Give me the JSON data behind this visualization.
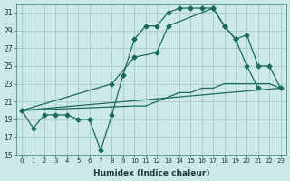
{
  "xlabel": "Humidex (Indice chaleur)",
  "bg_color": "#cce8e8",
  "grid_color": "#aacfcf",
  "line_color": "#1a6b5a",
  "xlim": [
    -0.5,
    23.5
  ],
  "ylim": [
    15,
    32
  ],
  "yticks": [
    15,
    17,
    19,
    21,
    23,
    25,
    27,
    29,
    31
  ],
  "xticks": [
    0,
    1,
    2,
    3,
    4,
    5,
    6,
    7,
    8,
    9,
    10,
    11,
    12,
    13,
    14,
    15,
    16,
    17,
    18,
    19,
    20,
    21,
    22,
    23
  ],
  "curve_main_x": [
    0,
    1,
    2,
    3,
    4,
    5,
    6,
    7,
    8,
    9,
    10,
    11,
    12,
    13,
    14,
    15,
    16,
    17,
    18,
    19,
    20,
    21
  ],
  "curve_main_y": [
    20.0,
    18.0,
    19.5,
    19.5,
    19.5,
    19.0,
    19.0,
    15.5,
    19.5,
    24.0,
    28.0,
    29.5,
    29.5,
    31.0,
    31.5,
    31.5,
    31.5,
    31.5,
    29.5,
    28.0,
    25.0,
    22.5
  ],
  "curve2_x": [
    0,
    8,
    10,
    12,
    13,
    17,
    18,
    19,
    20,
    21,
    22,
    23
  ],
  "curve2_y": [
    20.0,
    23.0,
    26.0,
    26.5,
    29.5,
    31.5,
    29.5,
    28.0,
    28.5,
    25.0,
    25.0,
    22.5
  ],
  "curve3_x": [
    0,
    23
  ],
  "curve3_y": [
    20.0,
    22.5
  ],
  "curve4_x": [
    0,
    10,
    11,
    12,
    13,
    14,
    15,
    16,
    17,
    18,
    19,
    20,
    21,
    22,
    23
  ],
  "curve4_y": [
    20.0,
    20.5,
    20.5,
    21.0,
    21.5,
    22.0,
    22.0,
    22.5,
    22.5,
    23.0,
    23.0,
    23.0,
    23.0,
    23.0,
    22.5
  ]
}
